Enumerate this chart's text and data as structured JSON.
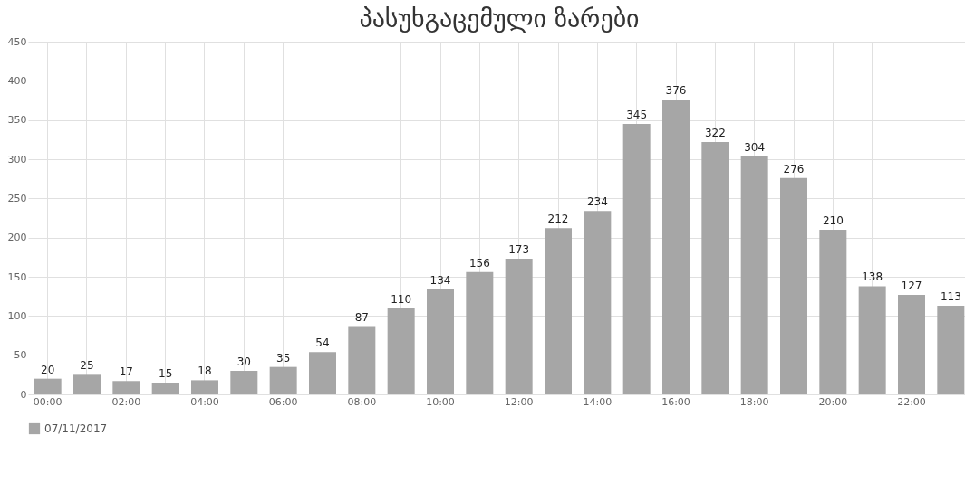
{
  "chart_data": {
    "type": "bar",
    "title": "პასუხგაცემული ზარები",
    "categories": [
      "00:00",
      null,
      "02:00",
      null,
      "04:00",
      null,
      "06:00",
      null,
      "08:00",
      null,
      "10:00",
      null,
      "12:00",
      null,
      "14:00",
      null,
      "16:00",
      null,
      "18:00",
      null,
      "20:00",
      null,
      "22:00",
      null
    ],
    "series": [
      {
        "name": "07/11/2017",
        "color": "#a6a6a6",
        "values": [
          20,
          25,
          17,
          15,
          18,
          30,
          35,
          54,
          87,
          110,
          134,
          156,
          173,
          212,
          234,
          345,
          376,
          322,
          304,
          276,
          210,
          138,
          127,
          113
        ]
      }
    ],
    "ylim": [
      0,
      450
    ],
    "yticks": [
      0,
      50,
      100,
      150,
      200,
      250,
      300,
      350,
      400,
      450
    ],
    "grid": true,
    "legend": "bottom",
    "data_labels": true
  }
}
